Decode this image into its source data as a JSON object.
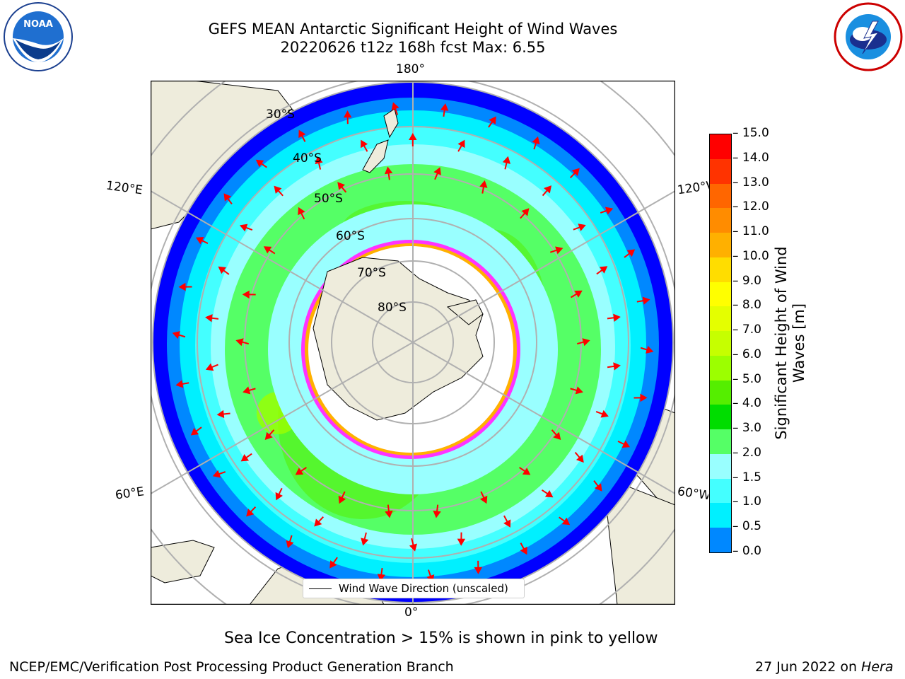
{
  "header": {
    "title_line1": "GEFS MEAN Antarctic Significant Height of Wind Waves",
    "title_line2": "20220626 t12z 168h fcst   Max: 6.55"
  },
  "logos": {
    "left": {
      "name": "NOAA",
      "ring_text": "NATIONAL OCEANIC AND ATMOSPHERIC ADMINISTRATION",
      "bottom_text": "U.S. DEPARTMENT OF COMMERCE"
    },
    "right": {
      "ring_text": "NATIONAL WEATHER SERVICE"
    }
  },
  "map": {
    "lon_labels": {
      "top": "180°",
      "bottom": "0°",
      "left_upper": "120°E",
      "left_lower": "60°E",
      "right_upper": "120°W",
      "right_lower": "60°W"
    },
    "lat_labels": [
      "30°S",
      "40°S",
      "50°S",
      "60°S",
      "70°S",
      "80°S"
    ],
    "legend_label": "Wind Wave Direction (unscaled)",
    "colors": {
      "land": "#eeecdc",
      "ocean_low": "#0000ff",
      "ice_edge": "#ff33ff",
      "arrow": "#ff0000"
    }
  },
  "colorbar": {
    "label": "Significant Height of Wind Waves [m]",
    "ticks": [
      "15.0",
      "14.0",
      "13.0",
      "12.0",
      "11.0",
      "10.0",
      "9.0",
      "8.0",
      "7.0",
      "6.0",
      "5.0",
      "4.0",
      "3.0",
      "2.0",
      "1.5",
      "1.0",
      "0.5",
      "0.0"
    ],
    "colors": [
      "#ff0000",
      "#ff3300",
      "#ff6600",
      "#ff8c00",
      "#ffb000",
      "#ffdd00",
      "#ffff00",
      "#e4ff00",
      "#c6ff00",
      "#9cff00",
      "#55ee00",
      "#00dd00",
      "#55ff66",
      "#99ffff",
      "#44ffff",
      "#00f0ff",
      "#0088ff",
      "#0000ff"
    ]
  },
  "caption": "Sea Ice Concentration > 15% is shown in pink to yellow",
  "footer": {
    "left": "NCEP/EMC/Verification Post Processing Product Generation Branch",
    "right_prefix": "27 Jun 2022 on ",
    "right_machine": "Hera"
  }
}
